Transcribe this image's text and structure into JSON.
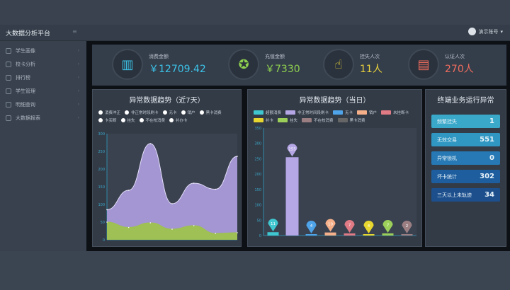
{
  "header": {
    "title": "大数据分析平台",
    "user": "演示账号"
  },
  "sidebar": {
    "items": [
      {
        "label": "学生画像"
      },
      {
        "label": "校卡分析"
      },
      {
        "label": "排行榜"
      },
      {
        "label": "学生管理"
      },
      {
        "label": "明细查询"
      },
      {
        "label": "大数据报表"
      }
    ]
  },
  "stats": [
    {
      "label": "消费金额",
      "value": "￥12709.42",
      "color": "#3cc3e8",
      "icon": "building-coins-icon"
    },
    {
      "label": "充值金额",
      "value": "￥7330",
      "color": "#8fd14f",
      "icon": "money-bag-icon"
    },
    {
      "label": "挂失人次",
      "value": "11人",
      "color": "#e8d13c",
      "icon": "hand-pointer-icon"
    },
    {
      "label": "认证人次",
      "value": "270人",
      "color": "#f06d5e",
      "icon": "id-card-icon"
    }
  ],
  "chart_data": [
    {
      "type": "area",
      "title": "异常数据趋势（近7天）",
      "legend": [
        "消费冲正",
        "非正常时段刷卡",
        "无卡",
        "销户",
        "黑卡消费",
        "卡买断",
        "挂失",
        "不在校消费",
        "补办卡"
      ],
      "ylim": [
        0,
        300
      ],
      "yticks": [
        0,
        50,
        100,
        150,
        200,
        250,
        300
      ],
      "grid": false,
      "series": [
        {
          "name": "非正常时段刷卡",
          "color": "#a99bd9",
          "values": [
            85,
            140,
            272,
            102,
            160,
            143,
            236
          ]
        },
        {
          "name": "不在校消费",
          "color": "#9ec24e",
          "values": [
            50,
            35,
            48,
            30,
            40,
            18,
            20
          ]
        }
      ]
    },
    {
      "type": "bar",
      "title": "异常数据趋势（当日）",
      "categories": [
        "超额消费",
        "非正常时间段刷卡",
        "无卡",
        "销户",
        "未挂断卡",
        "挂失",
        "不在校消费",
        "黑卡消费"
      ],
      "legend": [
        "超额消费",
        "非正常时间段刷卡",
        "无卡",
        "销户",
        "未挂断卡",
        "补卡",
        "挂失",
        "不在校消费",
        "黑卡消费"
      ],
      "values": [
        11,
        255,
        4,
        10,
        7,
        4,
        7,
        2
      ],
      "colors": [
        "#3fc6cf",
        "#b5a6e6",
        "#4fa3e8",
        "#f5b08a",
        "#e07a84",
        "#e8d630",
        "#9ccf5a",
        "#9a7e82"
      ],
      "ylim": [
        0,
        350
      ],
      "yticks": [
        0,
        50,
        100,
        150,
        200,
        250,
        300,
        350
      ]
    }
  ],
  "terminal": {
    "title": "终端业务运行异常",
    "rows": [
      {
        "label": "频繁挂失",
        "value": "1",
        "color": "#3aa9c9"
      },
      {
        "label": "无效交易",
        "value": "551",
        "color": "#2f97c2"
      },
      {
        "label": "异常锁机",
        "value": "0",
        "color": "#2679b5"
      },
      {
        "label": "坏卡统计",
        "value": "302",
        "color": "#1e5e9e"
      },
      {
        "label": "三天以上未轨迹",
        "value": "34",
        "color": "#1c4f8c"
      }
    ]
  }
}
